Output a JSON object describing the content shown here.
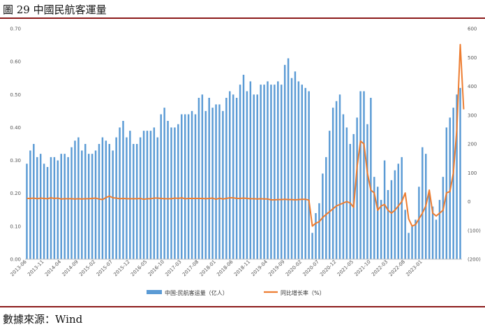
{
  "header": {
    "title": "圖 29 中國民航客運量"
  },
  "footer": {
    "source": "數據來源：Wind"
  },
  "chart_data": {
    "type": "bar+line",
    "x_tick_labels": [
      "2013-06",
      "2013-11",
      "2014-04",
      "2014-09",
      "2015-02",
      "2015-07",
      "2015-12",
      "2016-05",
      "2016-10",
      "2017-03",
      "2017-08",
      "2018-01",
      "2018-06",
      "2018-11",
      "2019-04",
      "2019-09",
      "2020-02",
      "2020-07",
      "2020-12",
      "2021-05",
      "2021-10",
      "2022-03",
      "2022-08",
      "2023-01"
    ],
    "y_left_ticks": [
      "0.00",
      "0.10",
      "0.20",
      "0.30",
      "0.40",
      "0.50",
      "0.60",
      "0.70"
    ],
    "y_right_ticks": [
      "(200)",
      "(100)",
      "0",
      "100",
      "200",
      "300",
      "400",
      "500",
      "600"
    ],
    "ylim_left": [
      0,
      0.7
    ],
    "ylim_right": [
      -200,
      600
    ],
    "colors": {
      "bars": "#5b9bd5",
      "line": "#ed7d31"
    },
    "series": [
      {
        "name": "中国:民航客运量（亿人）",
        "axis": "left",
        "type": "bar",
        "values": [
          0.29,
          0.33,
          0.35,
          0.31,
          0.32,
          0.29,
          0.28,
          0.31,
          0.31,
          0.3,
          0.32,
          0.32,
          0.31,
          0.34,
          0.36,
          0.37,
          0.33,
          0.35,
          0.32,
          0.32,
          0.33,
          0.35,
          0.37,
          0.36,
          0.35,
          0.33,
          0.37,
          0.4,
          0.42,
          0.37,
          0.39,
          0.35,
          0.35,
          0.37,
          0.39,
          0.39,
          0.39,
          0.4,
          0.37,
          0.44,
          0.46,
          0.42,
          0.4,
          0.4,
          0.41,
          0.44,
          0.44,
          0.44,
          0.45,
          0.44,
          0.49,
          0.5,
          0.45,
          0.49,
          0.46,
          0.47,
          0.47,
          0.45,
          0.49,
          0.51,
          0.5,
          0.49,
          0.53,
          0.56,
          0.51,
          0.54,
          0.5,
          0.5,
          0.53,
          0.53,
          0.54,
          0.53,
          0.53,
          0.54,
          0.53,
          0.59,
          0.61,
          0.55,
          0.57,
          0.54,
          0.53,
          0.52,
          0.51,
          0.08,
          0.14,
          0.17,
          0.26,
          0.31,
          0.39,
          0.46,
          0.48,
          0.5,
          0.44,
          0.4,
          0.35,
          0.38,
          0.43,
          0.51,
          0.51,
          0.41,
          0.49,
          0.25,
          0.22,
          0.18,
          0.3,
          0.21,
          0.24,
          0.27,
          0.29,
          0.31,
          0.15,
          0.08,
          0.1,
          0.12,
          0.22,
          0.34,
          0.32,
          0.2,
          0.16,
          0.12,
          0.18,
          0.25,
          0.4,
          0.43,
          0.46,
          0.5,
          0.52
        ]
      },
      {
        "name": "同比增长率（%）",
        "axis": "right",
        "type": "line",
        "values": [
          11,
          11,
          12,
          10,
          12,
          11,
          10,
          13,
          11,
          12,
          9,
          10,
          10,
          10,
          9,
          10,
          9,
          10,
          10,
          11,
          12,
          9,
          7,
          14,
          19,
          13,
          12,
          10,
          11,
          10,
          10,
          10,
          10,
          11,
          8,
          10,
          10,
          12,
          12,
          11,
          10,
          10,
          10,
          12,
          11,
          13,
          10,
          11,
          11,
          11,
          11,
          11,
          10,
          11,
          12,
          8,
          12,
          9,
          11,
          13,
          13,
          11,
          11,
          12,
          11,
          10,
          10,
          9,
          10,
          9,
          9,
          6,
          6,
          7,
          7,
          8,
          7,
          7,
          6,
          7,
          8,
          8,
          5,
          -85,
          -75,
          -70,
          -55,
          -45,
          -35,
          -25,
          -15,
          -10,
          -5,
          0,
          -5,
          -20,
          120,
          210,
          200,
          100,
          40,
          30,
          -30,
          -15,
          -10,
          -30,
          -40,
          -30,
          -15,
          0,
          30,
          -60,
          -85,
          -80,
          -60,
          -40,
          -15,
          40,
          -40,
          -50,
          -40,
          -30,
          30,
          35,
          100,
          250,
          545,
          320
        ]
      }
    ],
    "legend": [
      {
        "label": "中国:民航客运量（亿人）",
        "type": "bar"
      },
      {
        "label": "同比增长率（%）",
        "type": "line"
      }
    ],
    "legend_position": "bottom",
    "grid": false
  }
}
